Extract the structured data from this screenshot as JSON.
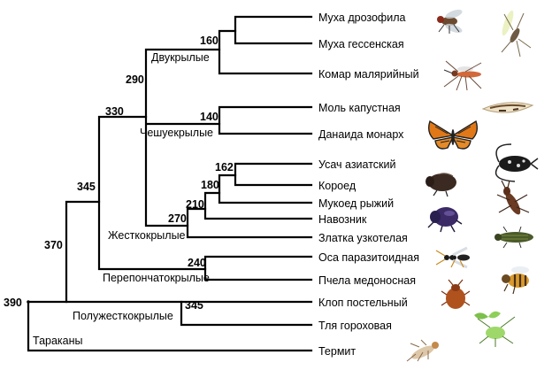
{
  "taxa": [
    "Муха дрозофила",
    "Муха гессенская",
    "Комар малярийный",
    "Моль капустная",
    "Данаида монарх",
    "Усач азиатский",
    "Короед",
    "Мукоед рыжий",
    "Навозник",
    "Златка узкотелая",
    "Оса паразитоидная",
    "Пчела медоносная",
    "Клоп постельный",
    "Тля гороховая",
    "Термит"
  ],
  "node_ages": {
    "root": "390",
    "n370": "370",
    "n345a": "345",
    "n330": "330",
    "n290": "290",
    "n160": "160",
    "n140": "140",
    "n270": "270",
    "n210": "210",
    "n180": "180",
    "n162": "162",
    "n240": "240",
    "n345b": "345"
  },
  "groups": {
    "diptera": "Двукрылые",
    "lepidoptera": "Чешуекрылые",
    "coleoptera": "Жесткокрылые",
    "hymenoptera": "Перепончатокрылые",
    "hemiptera": "Полужесткокрылые",
    "blattodea": "Тараканы"
  },
  "icons": [
    "fruit-fly-icon",
    "hessian-fly-icon",
    "mosquito-icon",
    "moth-icon",
    "monarch-butterfly-icon",
    "longhorn-beetle-icon",
    "bark-beetle-icon",
    "flour-beetle-icon",
    "dung-beetle-icon",
    "jewel-beetle-icon",
    "parasitoid-wasp-icon",
    "honeybee-icon",
    "bedbug-icon",
    "aphid-icon",
    "termite-icon"
  ]
}
